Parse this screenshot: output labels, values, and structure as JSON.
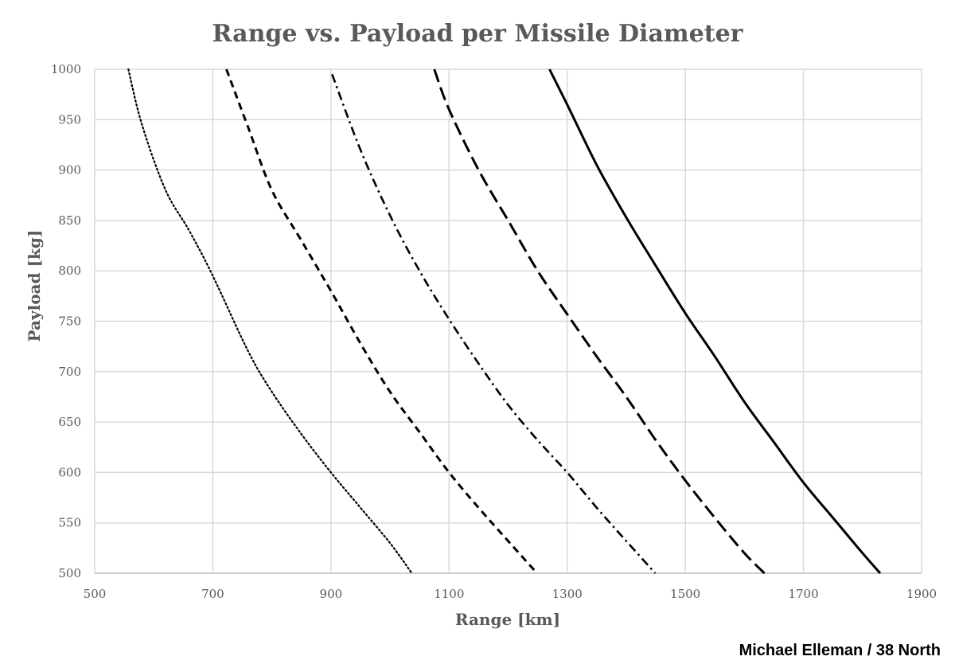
{
  "credit": "Michael Elleman / 38 North",
  "chart_data": {
    "type": "line",
    "title": "Range vs. Payload per Missile Diameter",
    "xlabel": "Range [km]",
    "ylabel": "Payload [kg]",
    "xlim": [
      500,
      1900
    ],
    "ylim": [
      500,
      1000
    ],
    "xticks": [
      500,
      700,
      900,
      1100,
      1300,
      1500,
      1700,
      1900
    ],
    "yticks": [
      500,
      550,
      600,
      650,
      700,
      750,
      800,
      850,
      900,
      950,
      1000
    ],
    "grid": true,
    "legend": "none",
    "series": [
      {
        "style": "dotted",
        "color": "#000000",
        "x": [
          557,
          580,
          620,
          660,
          700,
          760,
          800,
          850,
          900,
          950,
          1000,
          1037
        ],
        "y": [
          1000,
          945,
          880,
          840,
          795,
          720,
          680,
          638,
          600,
          565,
          530,
          500
        ]
      },
      {
        "style": "short-dash",
        "color": "#000000",
        "x": [
          723,
          760,
          800,
          850,
          900,
          950,
          1000,
          1050,
          1100,
          1150,
          1200,
          1249
        ],
        "y": [
          1000,
          942,
          880,
          830,
          780,
          728,
          680,
          640,
          600,
          565,
          532,
          500
        ]
      },
      {
        "style": "dash-dot",
        "color": "#000000",
        "x": [
          902,
          950,
          1000,
          1050,
          1100,
          1150,
          1200,
          1250,
          1300,
          1350,
          1400,
          1449
        ],
        "y": [
          995,
          920,
          855,
          800,
          752,
          708,
          667,
          632,
          600,
          565,
          532,
          500
        ]
      },
      {
        "style": "long-dash",
        "color": "#000000",
        "x": [
          1075,
          1100,
          1150,
          1200,
          1250,
          1300,
          1350,
          1400,
          1450,
          1500,
          1550,
          1600,
          1634
        ],
        "y": [
          1000,
          960,
          900,
          850,
          800,
          757,
          715,
          675,
          632,
          592,
          555,
          520,
          500
        ]
      },
      {
        "style": "solid",
        "color": "#000000",
        "x": [
          1270,
          1300,
          1350,
          1400,
          1450,
          1500,
          1550,
          1600,
          1650,
          1700,
          1750,
          1800,
          1830
        ],
        "y": [
          1000,
          965,
          905,
          853,
          805,
          758,
          715,
          670,
          630,
          590,
          555,
          520,
          500
        ]
      }
    ]
  }
}
